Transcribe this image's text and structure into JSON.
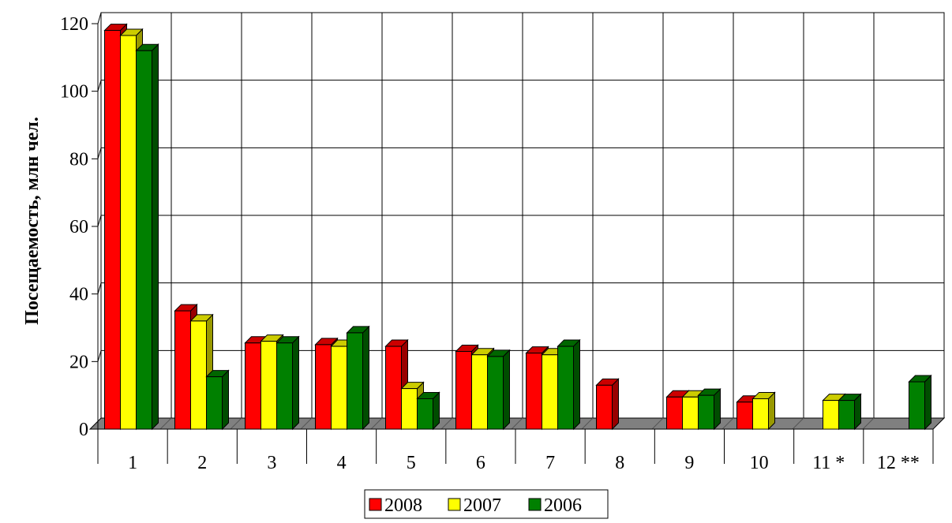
{
  "chart_data": {
    "type": "bar",
    "title": "",
    "xlabel": "",
    "ylabel": "Посещаемость, млн чел.",
    "ylim": [
      0,
      120
    ],
    "yticks": [
      0,
      20,
      40,
      60,
      80,
      100,
      120
    ],
    "grid": true,
    "legend_position": "bottom-center",
    "categories": [
      "1",
      "2",
      "3",
      "4",
      "5",
      "6",
      "7",
      "8",
      "9",
      "10",
      "11 *",
      "12 **"
    ],
    "series": [
      {
        "name": "2008",
        "color": "#ff0000",
        "values": [
          118,
          35,
          25.5,
          25,
          24.5,
          23,
          22.5,
          13,
          9.5,
          8,
          null,
          null
        ]
      },
      {
        "name": "2007",
        "color": "#ffff00",
        "values": [
          116.5,
          32,
          26,
          24.5,
          12,
          22,
          22,
          null,
          9.5,
          9,
          8.5,
          null
        ]
      },
      {
        "name": "2006",
        "color": "#008000",
        "values": [
          112,
          15.5,
          25.5,
          28.5,
          9,
          21.5,
          24.5,
          null,
          10,
          null,
          8.5,
          14
        ]
      }
    ]
  }
}
